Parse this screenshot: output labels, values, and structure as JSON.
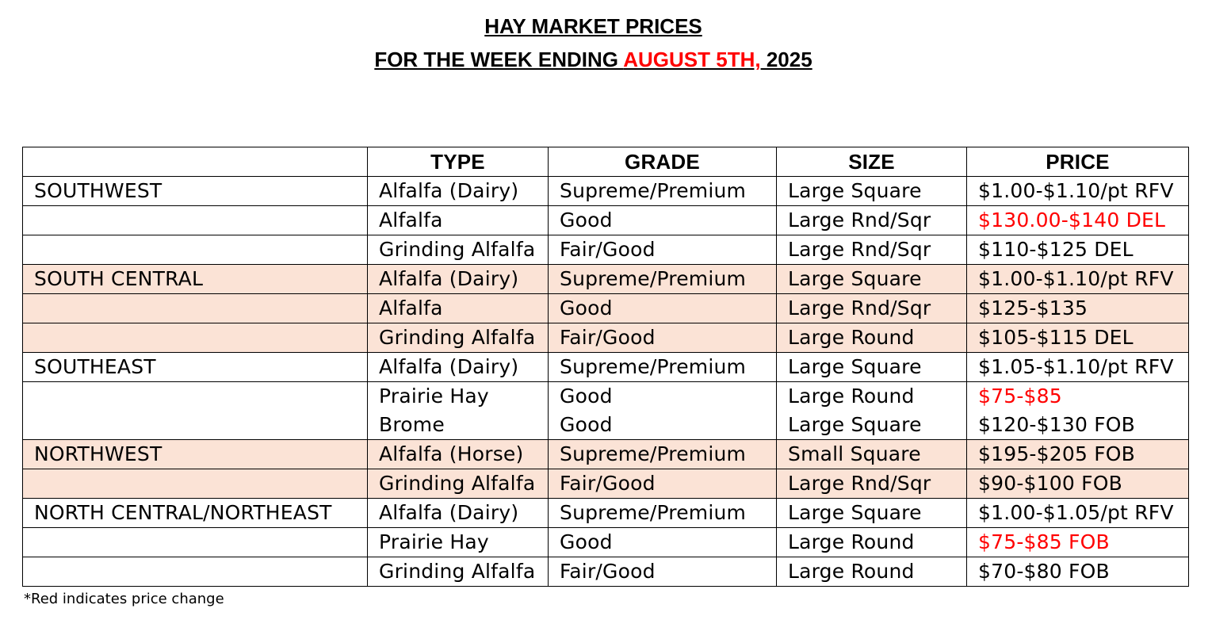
{
  "header": {
    "title_line1": "HAY MARKET PRICES",
    "title_line2_prefix": "FOR THE WEEK ENDING ",
    "title_line2_date": "AUGUST 5TH,",
    "title_line2_year": " 2025"
  },
  "table": {
    "columns": [
      "",
      "TYPE",
      "GRADE",
      "SIZE",
      "PRICE"
    ],
    "rows": [
      {
        "region": "SOUTHWEST",
        "type": "Alfalfa (Dairy)",
        "grade": "Supreme/Premium",
        "size": "Large Square",
        "price": "$1.00-$1.10/pt RFV",
        "price_changed": false,
        "shaded": false,
        "group_start": true
      },
      {
        "region": "",
        "type": "Alfalfa",
        "grade": "Good",
        "size": "Large Rnd/Sqr",
        "price": "$130.00-$140 DEL",
        "price_changed": true,
        "shaded": false,
        "group_start": false
      },
      {
        "region": "",
        "type": "Grinding Alfalfa",
        "grade": "Fair/Good",
        "size": "Large Rnd/Sqr",
        "price": "$110-$125 DEL",
        "price_changed": false,
        "shaded": false,
        "group_start": false
      },
      {
        "region": "SOUTH CENTRAL",
        "type": "Alfalfa (Dairy)",
        "grade": "Supreme/Premium",
        "size": "Large Square",
        "price": "$1.00-$1.10/pt RFV",
        "price_changed": false,
        "shaded": true,
        "group_start": true
      },
      {
        "region": "",
        "type": "Alfalfa",
        "grade": "Good",
        "size": "Large Rnd/Sqr",
        "price": "$125-$135",
        "price_changed": false,
        "shaded": true,
        "group_start": false
      },
      {
        "region": "",
        "type": "Grinding Alfalfa",
        "grade": "Fair/Good",
        "size": "Large Round",
        "price": "$105-$115 DEL",
        "price_changed": false,
        "shaded": true,
        "group_start": false
      },
      {
        "region": "SOUTHEAST",
        "type": "Alfalfa (Dairy)",
        "grade": "Supreme/Premium",
        "size": "Large Square",
        "price": "$1.05-$1.10/pt RFV",
        "price_changed": false,
        "shaded": false,
        "group_start": true
      },
      {
        "region": "",
        "type": "Prairie Hay",
        "grade": "Good",
        "size": "Large Round",
        "price": "$75-$85",
        "price_changed": true,
        "shaded": false,
        "group_start": false
      },
      {
        "region": "",
        "type": "Brome",
        "grade": "Good",
        "size": "Large Square",
        "price": "$120-$130 FOB",
        "price_changed": false,
        "shaded": false,
        "group_start": false,
        "no_top_border": true
      },
      {
        "region": "NORTHWEST",
        "type": "Alfalfa (Horse)",
        "grade": "Supreme/Premium",
        "size": "Small Square",
        "price": "$195-$205 FOB",
        "price_changed": false,
        "shaded": true,
        "group_start": true
      },
      {
        "region": "",
        "type": "Grinding Alfalfa",
        "grade": "Fair/Good",
        "size": "Large Rnd/Sqr",
        "price": "$90-$100 FOB",
        "price_changed": false,
        "shaded": true,
        "group_start": false
      },
      {
        "region": "NORTH CENTRAL/NORTHEAST",
        "type": "Alfalfa (Dairy)",
        "grade": "Supreme/Premium",
        "size": "Large Square",
        "price": "$1.00-$1.05/pt RFV",
        "price_changed": false,
        "shaded": false,
        "group_start": true
      },
      {
        "region": "",
        "type": "Prairie Hay",
        "grade": "Good",
        "size": "Large Round",
        "price": "$75-$85 FOB",
        "price_changed": true,
        "shaded": false,
        "group_start": false
      },
      {
        "region": "",
        "type": "Grinding Alfalfa",
        "grade": "Fair/Good",
        "size": "Large Round",
        "price": "$70-$80 FOB",
        "price_changed": false,
        "shaded": false,
        "group_start": false
      }
    ]
  },
  "footnote": "*Red indicates price change",
  "colors": {
    "changed_price": "#ff0000",
    "shaded_row": "#fbe3d6"
  }
}
